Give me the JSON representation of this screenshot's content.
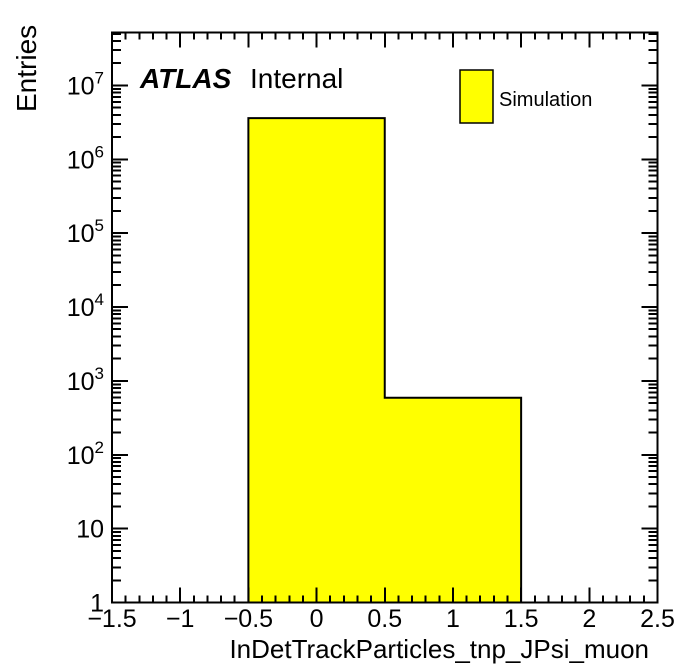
{
  "figure": {
    "background_color": "#ffffff",
    "axis_color": "#000000"
  },
  "chart_data": {
    "type": "bar",
    "style": "root-histogram",
    "title": "",
    "xlabel": "InDetTrackParticles_tnp_JPsi_muon",
    "ylabel": "Entries",
    "x_axis": {
      "min": -1.5,
      "max": 2.5,
      "major_tick_step": 0.5,
      "minor_tick_step": 0.1,
      "tick_labels": [
        "−1.5",
        "−1",
        "−0.5",
        "0",
        "0.5",
        "1",
        "1.5",
        "2",
        "2.5"
      ]
    },
    "y_axis": {
      "scale": "log",
      "min": 1,
      "max": 52000000,
      "major_tick_exponents": [
        0,
        1,
        2,
        3,
        4,
        5,
        6,
        7
      ],
      "grid": false
    },
    "series": [
      {
        "name": "Simulation",
        "bin_edges": [
          -1.5,
          -0.5,
          0.5,
          1.5,
          2.5
        ],
        "counts": [
          0,
          3600000,
          590,
          0
        ],
        "fill_color": "#ffff00",
        "line_color": "#000000"
      }
    ],
    "legend": {
      "position": "top-right",
      "entries": [
        {
          "label": "Simulation",
          "swatch_fill": "#ffff00",
          "swatch_border": "#000000"
        }
      ]
    },
    "annotations": [
      {
        "experiment": "ATLAS",
        "status": "Internal"
      }
    ]
  }
}
